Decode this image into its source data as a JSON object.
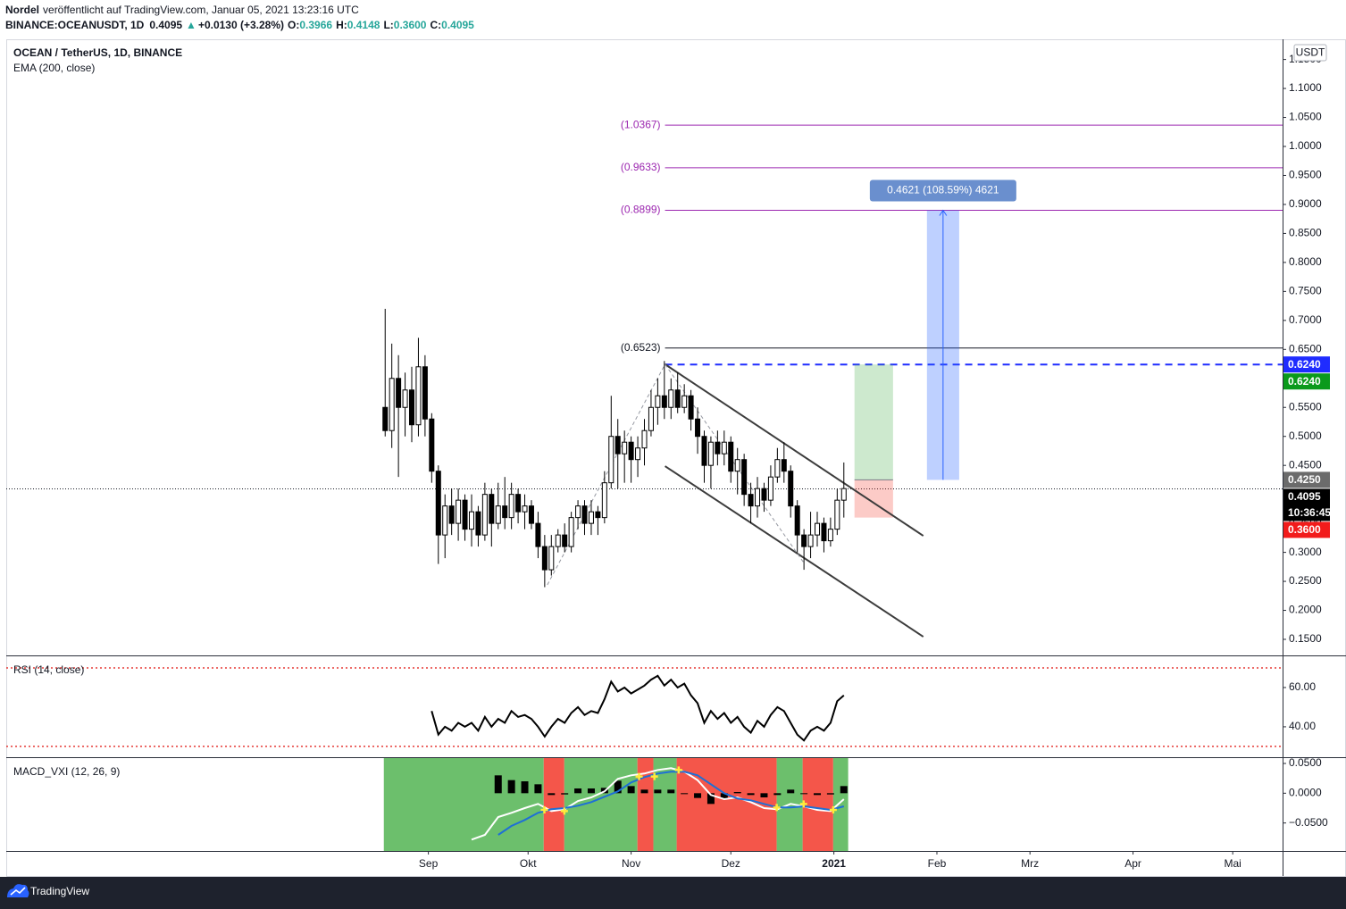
{
  "header": {
    "author": "Nordel",
    "published": "veröffentlicht auf TradingView.com, Januar 05, 2021 13:23:16 UTC",
    "symbol": "BINANCE:OCEANUSDT, 1D",
    "last": "0.4095",
    "change": "+0.0130 (+3.28%)",
    "ohlc": [
      {
        "label": "O:",
        "value": "0.3966"
      },
      {
        "label": "H:",
        "value": "0.4148"
      },
      {
        "label": "L:",
        "value": "0.3600"
      },
      {
        "label": "C:",
        "value": "0.4095"
      }
    ]
  },
  "chart_data": [
    {
      "type": "candlestick",
      "title": "OCEAN / TetherUS, 1D, BINANCE",
      "indicator": "EMA (200, close)",
      "currency": "USDT",
      "up_color": "#ffffff",
      "down_color": "#000000",
      "wick_color": "#000000",
      "x": [
        -13,
        -11,
        -9,
        -7,
        -5,
        -3,
        -1,
        1,
        3,
        5,
        7,
        9,
        11,
        13,
        15,
        17,
        19,
        21,
        23,
        25,
        27,
        29,
        31,
        33,
        35,
        37,
        39,
        41,
        43,
        45,
        47,
        49,
        51,
        53,
        55,
        57,
        59,
        61,
        63,
        65,
        67,
        69,
        71,
        73,
        75,
        77,
        79,
        81,
        83,
        85,
        87,
        89,
        91,
        93,
        95,
        97,
        99,
        101,
        103,
        105,
        107,
        109,
        111,
        113,
        115,
        117,
        119,
        121,
        123,
        125
      ],
      "open": [
        0.55,
        0.51,
        0.6,
        0.55,
        0.58,
        0.52,
        0.62,
        0.53,
        0.44,
        0.33,
        0.38,
        0.35,
        0.39,
        0.34,
        0.37,
        0.33,
        0.4,
        0.35,
        0.38,
        0.36,
        0.4,
        0.37,
        0.38,
        0.35,
        0.31,
        0.27,
        0.31,
        0.33,
        0.31,
        0.36,
        0.38,
        0.35,
        0.37,
        0.36,
        0.42,
        0.5,
        0.47,
        0.49,
        0.46,
        0.48,
        0.51,
        0.55,
        0.57,
        0.55,
        0.58,
        0.55,
        0.57,
        0.53,
        0.5,
        0.45,
        0.49,
        0.47,
        0.49,
        0.44,
        0.46,
        0.4,
        0.38,
        0.41,
        0.39,
        0.43,
        0.46,
        0.44,
        0.38,
        0.33,
        0.31,
        0.33,
        0.35,
        0.32,
        0.34,
        0.39
      ],
      "high": [
        0.72,
        0.66,
        0.64,
        0.61,
        0.62,
        0.67,
        0.64,
        0.54,
        0.45,
        0.4,
        0.41,
        0.41,
        0.4,
        0.4,
        0.38,
        0.42,
        0.41,
        0.42,
        0.43,
        0.42,
        0.41,
        0.4,
        0.39,
        0.37,
        0.33,
        0.33,
        0.34,
        0.35,
        0.37,
        0.39,
        0.39,
        0.39,
        0.38,
        0.44,
        0.57,
        0.53,
        0.51,
        0.5,
        0.5,
        0.53,
        0.58,
        0.6,
        0.63,
        0.6,
        0.61,
        0.59,
        0.58,
        0.55,
        0.51,
        0.5,
        0.51,
        0.51,
        0.5,
        0.48,
        0.47,
        0.42,
        0.43,
        0.42,
        0.45,
        0.48,
        0.49,
        0.45,
        0.39,
        0.34,
        0.37,
        0.37,
        0.36,
        0.36,
        0.41,
        0.455
      ],
      "low": [
        0.5,
        0.48,
        0.43,
        0.5,
        0.49,
        0.5,
        0.5,
        0.42,
        0.28,
        0.29,
        0.33,
        0.32,
        0.32,
        0.31,
        0.31,
        0.32,
        0.31,
        0.34,
        0.34,
        0.34,
        0.35,
        0.34,
        0.34,
        0.29,
        0.24,
        0.26,
        0.3,
        0.3,
        0.3,
        0.34,
        0.33,
        0.33,
        0.33,
        0.35,
        0.41,
        0.41,
        0.42,
        0.42,
        0.43,
        0.45,
        0.5,
        0.52,
        0.53,
        0.53,
        0.54,
        0.54,
        0.51,
        0.47,
        0.42,
        0.41,
        0.45,
        0.45,
        0.42,
        0.4,
        0.38,
        0.35,
        0.36,
        0.37,
        0.38,
        0.42,
        0.42,
        0.36,
        0.3,
        0.27,
        0.29,
        0.31,
        0.3,
        0.31,
        0.33,
        0.36
      ],
      "close": [
        0.51,
        0.6,
        0.55,
        0.58,
        0.52,
        0.62,
        0.53,
        0.44,
        0.33,
        0.38,
        0.35,
        0.39,
        0.34,
        0.37,
        0.33,
        0.4,
        0.35,
        0.38,
        0.36,
        0.4,
        0.37,
        0.38,
        0.35,
        0.31,
        0.27,
        0.31,
        0.33,
        0.31,
        0.36,
        0.38,
        0.35,
        0.37,
        0.36,
        0.42,
        0.5,
        0.47,
        0.49,
        0.46,
        0.48,
        0.51,
        0.55,
        0.57,
        0.55,
        0.58,
        0.55,
        0.57,
        0.53,
        0.5,
        0.45,
        0.49,
        0.47,
        0.49,
        0.44,
        0.46,
        0.4,
        0.38,
        0.41,
        0.39,
        0.43,
        0.46,
        0.44,
        0.38,
        0.33,
        0.31,
        0.33,
        0.35,
        0.32,
        0.34,
        0.39,
        0.41
      ],
      "xlim": [
        -127,
        257
      ],
      "xticks": [
        {
          "value": 0,
          "label": "Sep"
        },
        {
          "value": 30,
          "label": "Okt"
        },
        {
          "value": 61,
          "label": "Nov"
        },
        {
          "value": 91,
          "label": "Dez"
        },
        {
          "value": 122,
          "label": "2021",
          "bold": true
        },
        {
          "value": 153,
          "label": "Feb"
        },
        {
          "value": 181,
          "label": "Mrz"
        },
        {
          "value": 212,
          "label": "Apr"
        },
        {
          "value": 242,
          "label": "Mai"
        }
      ],
      "ylim": [
        0.1223,
        1.1848
      ],
      "yticks": [
        {
          "value": 0.15,
          "label": "0.1500"
        },
        {
          "value": 0.2,
          "label": "0.2000"
        },
        {
          "value": 0.25,
          "label": "0.2500"
        },
        {
          "value": 0.3,
          "label": "0.3000"
        },
        {
          "value": 0.35,
          "label": "0.3500"
        },
        {
          "value": 0.4,
          "label": "0.4000"
        },
        {
          "value": 0.45,
          "label": "0.4500"
        },
        {
          "value": 0.5,
          "label": "0.5000"
        },
        {
          "value": 0.55,
          "label": "0.5500"
        },
        {
          "value": 0.6,
          "label": "0.6000"
        },
        {
          "value": 0.65,
          "label": "0.6500"
        },
        {
          "value": 0.7,
          "label": "0.7000"
        },
        {
          "value": 0.75,
          "label": "0.7500"
        },
        {
          "value": 0.8,
          "label": "0.8000"
        },
        {
          "value": 0.85,
          "label": "0.8500"
        },
        {
          "value": 0.9,
          "label": "0.9000"
        },
        {
          "value": 0.95,
          "label": "0.9500"
        },
        {
          "value": 1.0,
          "label": "1.0000"
        },
        {
          "value": 1.05,
          "label": "1.0500"
        },
        {
          "value": 1.1,
          "label": "1.1000"
        },
        {
          "value": 1.15,
          "label": "1.1500"
        }
      ],
      "levels_from": 71.2,
      "levels": [
        {
          "value": 1.0367,
          "label": "(1.0367)",
          "color": "#9c27b0"
        },
        {
          "value": 0.9633,
          "label": "(0.9633)",
          "color": "#9c27b0"
        },
        {
          "value": 0.8899,
          "label": "(0.8899)",
          "color": "#9c27b0"
        },
        {
          "value": 0.6523,
          "label": "(0.6523)",
          "color": "#131722"
        }
      ],
      "dashed_level": {
        "value": 0.624,
        "from": 71.2,
        "color": "#1f2cff"
      },
      "last_price": 0.4095,
      "channel_color": "#3c3c3c",
      "channel": [
        {
          "x": [
            71.2,
            148.9
          ],
          "y": [
            0.6243,
            0.3286
          ]
        },
        {
          "x": [
            71.2,
            148.9
          ],
          "y": [
            0.4487,
            0.1546
          ]
        }
      ],
      "zigzag": {
        "x": [
          35.8,
          71.2,
          112.9
        ],
        "y": [
          0.2439,
          0.6243,
          0.2824
        ]
      },
      "position": {
        "x": [
          128.2,
          139.8
        ],
        "entry": 0.425,
        "target": 0.624,
        "stop": 0.36
      },
      "measure": {
        "x": [
          150,
          159.7
        ],
        "from": 0.425,
        "to": 0.8899,
        "label": "0.4621 (108.59%) 4621",
        "color": "#6a8fce"
      },
      "price_labels": [
        {
          "value": 0.624,
          "label": "0.6240",
          "color": "#1f2cff"
        },
        {
          "value": 0.624,
          "label": "0.6240",
          "color": "#0b9a1c"
        },
        {
          "value": 0.425,
          "label": "0.4250",
          "color": "#6b6b6b"
        },
        {
          "value": 0.4095,
          "label": "0.4095",
          "color": "#000000",
          "countdown": "10:36:45"
        },
        {
          "value": 0.36,
          "label": "0.3600",
          "color": "#f21b1b"
        }
      ]
    },
    {
      "type": "line",
      "title": "RSI (14, close)",
      "color": "#000000",
      "band_color": "#e53935",
      "bands": [
        30,
        70
      ],
      "x": [
        1,
        3,
        5,
        7,
        9,
        11,
        13,
        15,
        17,
        19,
        21,
        23,
        25,
        27,
        29,
        31,
        33,
        35,
        37,
        39,
        41,
        43,
        45,
        47,
        49,
        51,
        53,
        55,
        57,
        59,
        61,
        63,
        65,
        67,
        69,
        71,
        73,
        75,
        77,
        79,
        81,
        83,
        85,
        87,
        89,
        91,
        93,
        95,
        97,
        99,
        101,
        103,
        105,
        107,
        109,
        111,
        113,
        115,
        117,
        119,
        121,
        123,
        125
      ],
      "values": [
        48,
        36,
        40,
        38,
        42,
        40,
        42,
        38,
        45,
        40,
        44,
        42,
        48,
        45,
        46,
        44,
        40,
        35,
        40,
        44,
        42,
        47,
        50,
        46,
        48,
        47,
        54,
        63,
        58,
        60,
        57,
        59,
        61,
        64,
        66,
        61,
        64,
        60,
        62,
        56,
        52,
        42,
        48,
        44,
        47,
        42,
        45,
        40,
        37,
        43,
        40,
        46,
        50,
        48,
        42,
        36,
        33,
        38,
        40,
        38,
        42,
        53,
        56
      ],
      "ylim": [
        24.5,
        75.9
      ],
      "yticks": [
        {
          "value": 40,
          "label": "40.00"
        },
        {
          "value": 60,
          "label": "60.00"
        }
      ]
    },
    {
      "type": "macd",
      "title": "MACD_VXI (12, 26, 9)",
      "regions": [
        {
          "start": -13.4,
          "end": 34.7,
          "color": "#6cbf6c"
        },
        {
          "start": 34.7,
          "end": 40.9,
          "color": "#f4564a"
        },
        {
          "start": 40.9,
          "end": 62.9,
          "color": "#6cbf6c"
        },
        {
          "start": 62.9,
          "end": 67.7,
          "color": "#f4564a"
        },
        {
          "start": 67.7,
          "end": 74.7,
          "color": "#6cbf6c"
        },
        {
          "start": 74.7,
          "end": 104.8,
          "color": "#f4564a"
        },
        {
          "start": 104.8,
          "end": 112.6,
          "color": "#6cbf6c"
        },
        {
          "start": 112.6,
          "end": 121.8,
          "color": "#f4564a"
        },
        {
          "start": 121.8,
          "end": 126.3,
          "color": "#6cbf6c"
        }
      ],
      "x": [
        13,
        17,
        21,
        25,
        29,
        33,
        37,
        41,
        45,
        49,
        53,
        57,
        61,
        65,
        69,
        73,
        77,
        81,
        85,
        89,
        93,
        97,
        101,
        105,
        109,
        113,
        117,
        121,
        125
      ],
      "series": [
        {
          "color": "#ffffff",
          "values": [
            -0.078,
            -0.07,
            -0.04,
            -0.033,
            -0.025,
            -0.018,
            -0.03,
            -0.027,
            -0.013,
            -0.007,
            0.003,
            0.024,
            0.03,
            0.033,
            0.039,
            0.042,
            0.036,
            0.022,
            -0.003,
            -0.01,
            -0.007,
            -0.015,
            -0.025,
            -0.027,
            -0.018,
            -0.022,
            -0.028,
            -0.03,
            -0.01
          ]
        },
        {
          "color": "#1e6fd6",
          "values": [
            null,
            null,
            -0.07,
            -0.055,
            -0.045,
            -0.033,
            -0.027,
            -0.025,
            -0.021,
            -0.015,
            -0.006,
            0.003,
            0.018,
            0.027,
            0.033,
            0.036,
            0.036,
            0.03,
            0.015,
            0,
            -0.009,
            -0.012,
            -0.018,
            -0.024,
            -0.024,
            -0.022,
            -0.025,
            -0.028,
            -0.022
          ]
        }
      ],
      "histogram": {
        "color": "#000000",
        "values": [
          null,
          null,
          0.03,
          0.022,
          0.02,
          0.015,
          -0.003,
          -0.002,
          0.008,
          0.008,
          0.009,
          0.021,
          0.012,
          0.006,
          0.006,
          0.006,
          0,
          -0.008,
          -0.018,
          -0.01,
          0.002,
          -0.003,
          -0.007,
          -0.003,
          0.006,
          0,
          -0.003,
          -0.002,
          0.012
        ]
      },
      "crosses": {
        "color": "#ffeb3b",
        "x": [
          34.9,
          40.9,
          63.4,
          68,
          75.3,
          104.8,
          112.9,
          121.8
        ],
        "y": [
          -0.028,
          -0.03,
          0.028,
          0.028,
          0.039,
          -0.024,
          -0.018,
          -0.028
        ]
      },
      "ylim": [
        -0.097,
        0.059
      ],
      "yticks": [
        {
          "value": 0.05,
          "label": "0.0500"
        },
        {
          "value": 0,
          "label": "0.0000"
        },
        {
          "value": -0.05,
          "label": "−0.0500"
        }
      ]
    }
  ],
  "footer": {
    "brand": "TradingView"
  }
}
